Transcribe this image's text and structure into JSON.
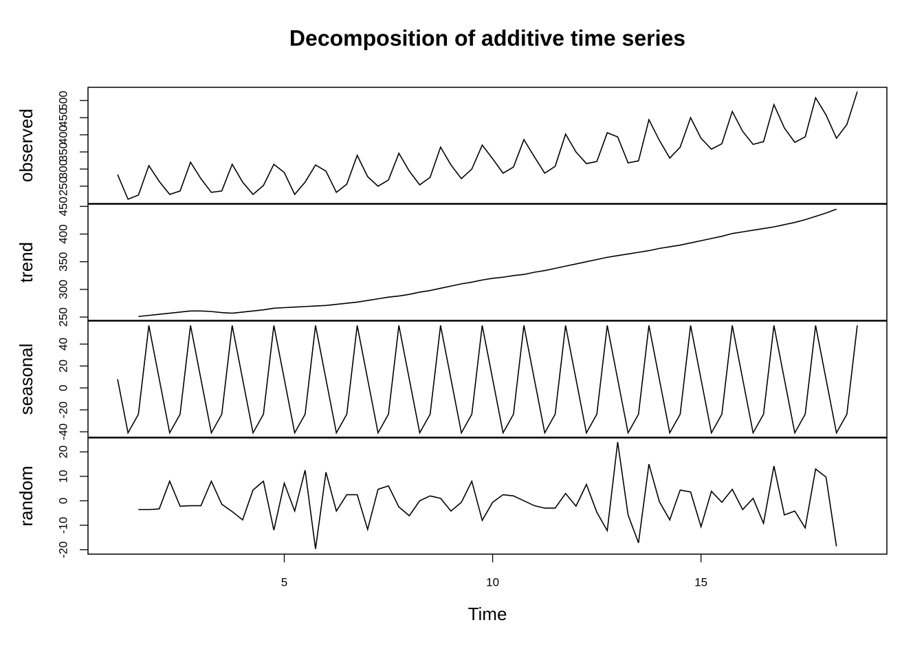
{
  "chart_data": {
    "type": "line",
    "title": "Decomposition of additive time series",
    "xlabel": "Time",
    "color": "#000000",
    "x": [
      1,
      1.25,
      1.5,
      1.75,
      2,
      2.25,
      2.5,
      2.75,
      3,
      3.25,
      3.5,
      3.75,
      4,
      4.25,
      4.5,
      4.75,
      5,
      5.25,
      5.5,
      5.75,
      6,
      6.25,
      6.5,
      6.75,
      7,
      7.25,
      7.5,
      7.75,
      8,
      8.25,
      8.5,
      8.75,
      9,
      9.25,
      9.5,
      9.75,
      10,
      10.25,
      10.5,
      10.75,
      11,
      11.25,
      11.5,
      11.75,
      12,
      12.25,
      12.5,
      12.75,
      13,
      13.25,
      13.5,
      13.75,
      14,
      14.25,
      14.5,
      14.75,
      15,
      15.25,
      15.5,
      15.75,
      16,
      16.25,
      16.5,
      16.75,
      17,
      17.25,
      17.5,
      17.75,
      18,
      18.25,
      18.5,
      18.75
    ],
    "xlim": [
      0.29,
      19.46
    ],
    "xticks": [
      5,
      10,
      15
    ],
    "panels": [
      {
        "ylabel": "observed",
        "ylim": [
          199.5,
          538.6
        ],
        "yticks": [
          250,
          300,
          350,
          400,
          450,
          500
        ],
        "values": [
          284,
          212,
          224,
          310,
          264,
          226,
          236,
          320,
          272,
          232,
          236,
          314,
          262,
          226,
          252,
          314,
          290,
          226,
          262,
          312,
          294,
          232,
          256,
          340,
          278,
          250,
          268,
          346,
          294,
          254,
          276,
          364,
          312,
          272,
          300,
          370,
          330,
          288,
          306,
          386,
          336,
          288,
          308,
          402,
          350,
          316,
          322,
          406,
          394,
          318,
          324,
          444,
          384,
          332,
          364,
          450,
          390,
          358,
          374,
          468,
          410,
          372,
          380,
          488,
          420,
          378,
          394,
          508,
          458,
          390,
          430,
          526
        ]
      },
      {
        "ylabel": "trend",
        "ylim": [
          244,
          454
        ],
        "yticks": [
          250,
          300,
          350,
          400,
          450
        ],
        "values": [
          null,
          null,
          251,
          253,
          255,
          257,
          259,
          261,
          261,
          260,
          258,
          257,
          259,
          261,
          263,
          266,
          267,
          268,
          269,
          270,
          271,
          273,
          275,
          277,
          280,
          283,
          286,
          288,
          291,
          295,
          298,
          302,
          306,
          310,
          313,
          317,
          320,
          322,
          325,
          327,
          331,
          334,
          338,
          342,
          346,
          350,
          354,
          358,
          361,
          364,
          367,
          370,
          374,
          377,
          380,
          384,
          388,
          392,
          396,
          401,
          404,
          407,
          410,
          413,
          417,
          421,
          426,
          432,
          438,
          445,
          null,
          null
        ]
      },
      {
        "ylabel": "seasonal",
        "ylim": [
          -45,
          61
        ],
        "yticks": [
          -40,
          -20,
          0,
          20,
          40
        ],
        "values": [
          8,
          -41,
          -24,
          57,
          8,
          -41,
          -24,
          57,
          8,
          -41,
          -24,
          57,
          8,
          -41,
          -24,
          57,
          8,
          -41,
          -24,
          57,
          8,
          -41,
          -24,
          57,
          8,
          -41,
          -24,
          57,
          8,
          -41,
          -24,
          57,
          8,
          -41,
          -24,
          57,
          8,
          -41,
          -24,
          57,
          8,
          -41,
          -24,
          57,
          8,
          -41,
          -24,
          57,
          8,
          -41,
          -24,
          57,
          8,
          -41,
          -24,
          57,
          8,
          -41,
          -24,
          57,
          8,
          -41,
          -24,
          57,
          8,
          -41,
          -24,
          57,
          8,
          -41,
          -24,
          57
        ]
      },
      {
        "ylabel": "random",
        "ylim": [
          -21.8,
          25.7
        ],
        "yticks": [
          -20,
          -10,
          0,
          10,
          20
        ],
        "values": [
          null,
          null,
          -3.6,
          -3.6,
          -3.3,
          8,
          -2.2,
          -2,
          -2,
          8,
          -1.4,
          -4.4,
          -7.8,
          4.4,
          8,
          -12,
          7.2,
          -4.2,
          12.5,
          -19.7,
          11.7,
          -4.2,
          2.5,
          2.5,
          -11.7,
          4.7,
          6.1,
          -2.5,
          -6.1,
          0,
          2,
          1,
          -4.2,
          -0.6,
          8,
          -8,
          -0.6,
          2.5,
          2,
          0,
          -2,
          -3,
          -3,
          3,
          -2.2,
          6.7,
          -4.7,
          -12.2,
          24,
          -5.8,
          -17.2,
          15,
          -0.3,
          -7.8,
          4.4,
          3.6,
          -10.6,
          3.9,
          -0.6,
          4.7,
          -3.6,
          1,
          -9.2,
          14.2,
          -5.8,
          -4.2,
          -11.1,
          13,
          9.7,
          -18.6,
          null,
          null
        ]
      }
    ]
  }
}
